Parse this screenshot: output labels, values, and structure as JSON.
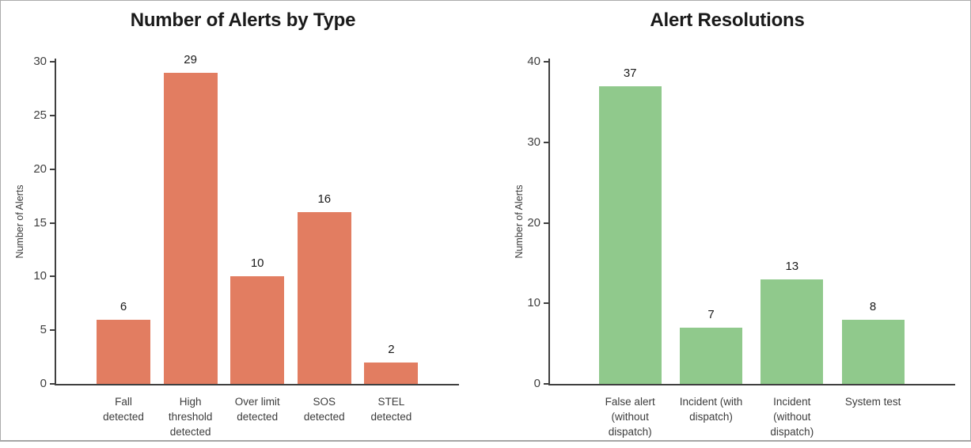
{
  "frame": {
    "background": "#FFFFFF",
    "border_color": "#ABABAB"
  },
  "chart_data": [
    {
      "type": "bar",
      "title": "Number of Alerts by Type",
      "xlabel": "",
      "ylabel": "Number of Alerts",
      "categories": [
        "Fall detected",
        "High threshold detected",
        "Over limit detected",
        "SOS detected",
        "STEL detected"
      ],
      "category_lines": [
        [
          "Fall",
          "detected"
        ],
        [
          "High",
          "threshold",
          "detected"
        ],
        [
          "Over limit",
          "detected"
        ],
        [
          "SOS",
          "detected"
        ],
        [
          "STEL",
          "detected"
        ]
      ],
      "values": [
        6,
        29,
        10,
        16,
        2
      ],
      "bar_color": "#E27D61",
      "ylim": [
        0,
        30
      ],
      "yticks": [
        0,
        5,
        10,
        15,
        20,
        25,
        30
      ],
      "grid": false,
      "legend": "none"
    },
    {
      "type": "bar",
      "title": "Alert Resolutions",
      "xlabel": "",
      "ylabel": "Number of Alerts",
      "categories": [
        "False alert (without dispatch)",
        "Incident (with dispatch)",
        "Incident (without dispatch)",
        "System test"
      ],
      "category_lines": [
        [
          "False alert",
          "(without",
          "dispatch)"
        ],
        [
          "Incident (with",
          "dispatch)"
        ],
        [
          "Incident",
          "(without",
          "dispatch)"
        ],
        [
          "System test"
        ]
      ],
      "values": [
        37,
        7,
        13,
        8
      ],
      "bar_color": "#90C98C",
      "ylim": [
        0,
        40
      ],
      "yticks": [
        0,
        10,
        20,
        30,
        40
      ],
      "grid": false,
      "legend": "none"
    }
  ]
}
